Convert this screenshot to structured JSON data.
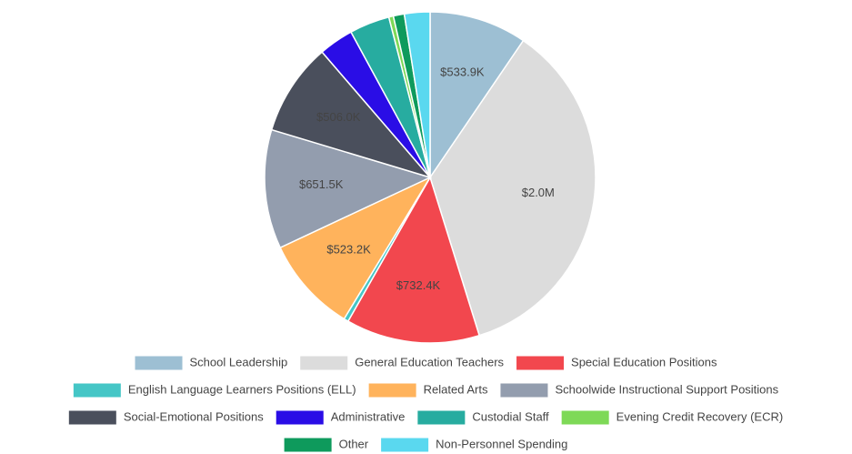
{
  "chart_data": {
    "type": "pie",
    "categories": [
      "School Leadership",
      "General Education Teachers",
      "Special Education Positions",
      "English Language Learners Positions (ELL)",
      "Related Arts",
      "Schoolwide Instructional Support Positions",
      "Social-Emotional Positions",
      "Administrative",
      "Custodial Staff",
      "Evening Credit Recovery (ECR)",
      "Other",
      "Non-Personnel Spending"
    ],
    "values": [
      533900,
      2000000,
      732400,
      25000,
      523200,
      651500,
      506000,
      190000,
      220000,
      25000,
      60000,
      140000
    ],
    "value_labels": [
      "$533.9K",
      "$2.0M",
      "$732.4K",
      null,
      "$523.2K",
      "$651.5K",
      "$506.0K",
      null,
      null,
      null,
      null,
      null
    ],
    "colors": [
      "#9dbfd3",
      "#dcdcdc",
      "#f2474e",
      "#45c6c6",
      "#ffb35c",
      "#939dae",
      "#4a4f5c",
      "#2a0de6",
      "#27aca0",
      "#7ed957",
      "#0e9a5c",
      "#5ad8ef"
    ],
    "legend": "bottom"
  }
}
